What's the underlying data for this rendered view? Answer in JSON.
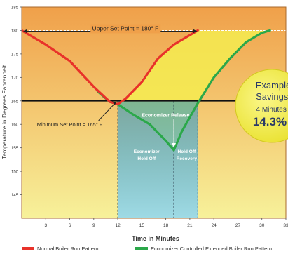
{
  "chart_data": {
    "type": "line",
    "xlabel": "Time in Minutes",
    "ylabel": "Temperature in Degrees Fahrenheit",
    "xlim": [
      0,
      33
    ],
    "ylim": [
      140,
      185
    ],
    "x_ticks": [
      3,
      6,
      9,
      12,
      15,
      18,
      21,
      24,
      27,
      30,
      33
    ],
    "y_ticks": [
      145,
      150,
      155,
      160,
      165,
      170,
      175,
      180,
      185
    ],
    "series": [
      {
        "name": "Normal Boiler Run Pattern",
        "color": "#e8322a",
        "points": [
          [
            0,
            180
          ],
          [
            3,
            177
          ],
          [
            6,
            173.5
          ],
          [
            9,
            168
          ],
          [
            11,
            164.8
          ],
          [
            12,
            164.3
          ],
          [
            13,
            165.5
          ],
          [
            15,
            169
          ],
          [
            17,
            174
          ],
          [
            19,
            177
          ],
          [
            21,
            179
          ],
          [
            22,
            180
          ]
        ]
      },
      {
        "name": "Economizer Controlled Extended Boiler Run Pattern",
        "color": "#2ba84a",
        "points": [
          [
            9.5,
            167
          ],
          [
            11,
            164.8
          ],
          [
            12,
            164.3
          ],
          [
            14,
            162
          ],
          [
            16,
            160
          ],
          [
            18,
            156.5
          ],
          [
            19,
            154.5
          ],
          [
            20,
            158.5
          ],
          [
            22,
            164.5
          ],
          [
            24,
            170
          ],
          [
            26,
            174
          ],
          [
            28,
            177.5
          ],
          [
            30,
            179.5
          ],
          [
            31,
            180
          ]
        ]
      }
    ],
    "annotations": {
      "upper_set_point": "Upper Set Point = 180° F",
      "minimum_set_point": "Minimum Set Point = 165° F",
      "economizer_release": "Economizer Release",
      "hold_off_1": "Economizer Hold Off",
      "hold_off_2": "Hold Off Recovery"
    },
    "savings_badge": {
      "title": "Example Savings:",
      "line1": "4 Minutes or",
      "line2": "14.3%"
    },
    "legend_position": "bottom"
  },
  "colors": {
    "plot_top": "#f0a04a",
    "plot_bottom": "#f7f19a",
    "frame": "#a86a2e",
    "blue_region": "#4aa8d8",
    "badge": "#f4ef3e"
  }
}
